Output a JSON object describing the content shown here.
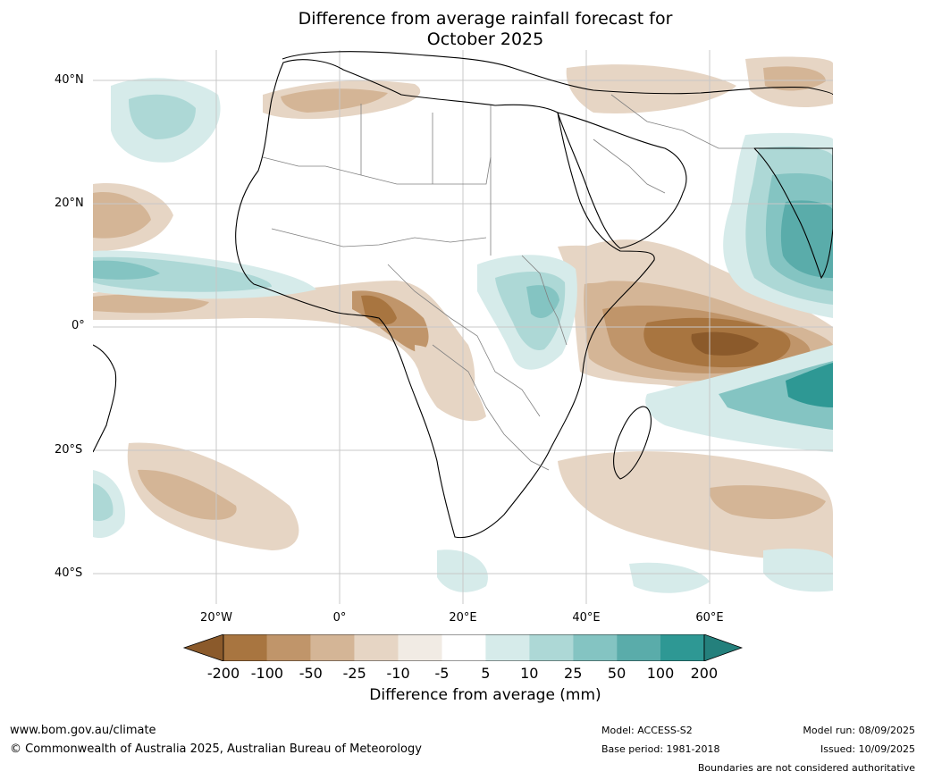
{
  "title_line1": "Difference from average rainfall forecast for",
  "title_line2": "October 2025",
  "lat_labels": [
    "40°N",
    "20°N",
    "0°",
    "20°S",
    "40°S"
  ],
  "lon_labels": [
    "20°W",
    "0°",
    "20°E",
    "40°E",
    "60°E"
  ],
  "colorbar": {
    "labels": [
      "-200",
      "-100",
      "-50",
      "-25",
      "-10",
      "-5",
      "5",
      "10",
      "25",
      "50",
      "100",
      "200"
    ],
    "colors": [
      "#8b5a2b",
      "#a87540",
      "#c0956a",
      "#d4b596",
      "#e6d5c4",
      "#f1ebe4",
      "#ffffff",
      "#d6ebea",
      "#add8d6",
      "#84c4c2",
      "#5aacaa",
      "#2e9894",
      "#24807c"
    ],
    "title": "Difference from average (mm)"
  },
  "footer": {
    "website": "www.bom.gov.au/climate",
    "copyright": "© Commonwealth of Australia 2025, Australian Bureau of Meteorology",
    "model": "Model: ACCESS-S2",
    "base_period": "Base period: 1981-2018",
    "model_run": "Model run: 08/09/2025",
    "issued": "Issued: 10/09/2025",
    "disclaimer": "Boundaries are not considered authoritative"
  }
}
